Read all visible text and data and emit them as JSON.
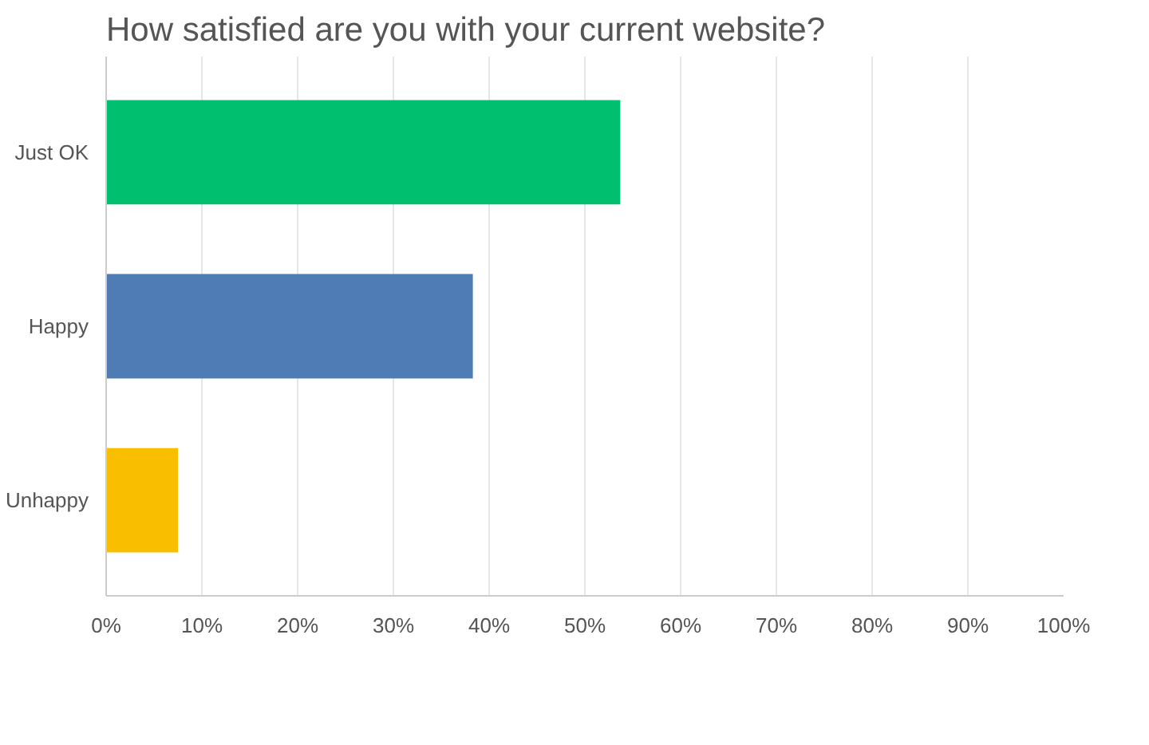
{
  "chart_data": {
    "type": "bar",
    "orientation": "horizontal",
    "title": "How satisfied are you with your current website?",
    "categories": [
      "Just OK",
      "Happy",
      "Unhappy"
    ],
    "values": [
      53.7,
      38.3,
      7.5
    ],
    "colors": [
      "#00bf6f",
      "#507cb6",
      "#f9be00"
    ],
    "xlim": [
      0,
      100
    ],
    "xticks": [
      {
        "value": 0,
        "label": "0%"
      },
      {
        "value": 10,
        "label": "10%"
      },
      {
        "value": 20,
        "label": "20%"
      },
      {
        "value": 30,
        "label": "30%"
      },
      {
        "value": 40,
        "label": "40%"
      },
      {
        "value": 50,
        "label": "50%"
      },
      {
        "value": 60,
        "label": "60%"
      },
      {
        "value": 70,
        "label": "70%"
      },
      {
        "value": 80,
        "label": "80%"
      },
      {
        "value": 90,
        "label": "90%"
      },
      {
        "value": 100,
        "label": "100%"
      }
    ],
    "grid": "x"
  }
}
